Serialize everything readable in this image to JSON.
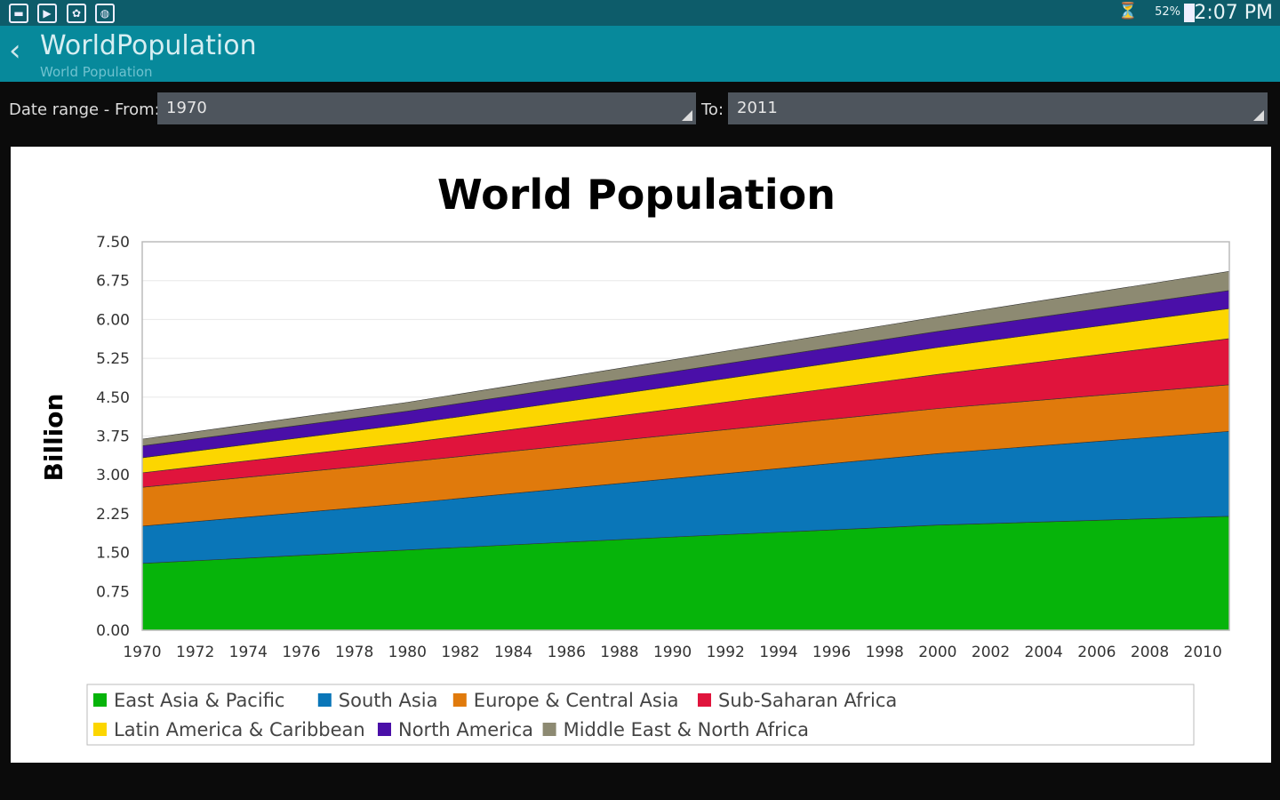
{
  "status_bar": {
    "battery": "52%",
    "time": "2:07 PM",
    "icons": [
      "gallery-icon",
      "play-store-icon",
      "app-icon",
      "globe-icon",
      "wifi-icon",
      "battery-icon"
    ]
  },
  "app_bar": {
    "title": "WorldPopulation",
    "subtitle": "World Population"
  },
  "filter": {
    "from_label": "Date range - From:",
    "from_value": "1970",
    "to_label": "To:",
    "to_value": "2011"
  },
  "colors": {
    "status": "#0d5c6a",
    "appbar": "#07899b"
  },
  "chart_data": {
    "type": "area",
    "stacked": true,
    "title": "World Population",
    "xlabel": "",
    "ylabel": "Billion",
    "ylim": [
      0,
      7.5
    ],
    "yticks": [
      "0.00",
      "0.75",
      "1.50",
      "2.25",
      "3.00",
      "3.75",
      "4.50",
      "5.25",
      "6.00",
      "6.75",
      "7.50"
    ],
    "xlim": [
      1970,
      2011
    ],
    "xticks": [
      "1970",
      "1972",
      "1974",
      "1976",
      "1978",
      "1980",
      "1982",
      "1984",
      "1986",
      "1988",
      "1990",
      "1992",
      "1994",
      "1996",
      "1998",
      "2000",
      "2002",
      "2004",
      "2006",
      "2008",
      "2010"
    ],
    "grid": true,
    "legend_position": "bottom",
    "x": [
      1970,
      1980,
      1990,
      2000,
      2011
    ],
    "series": [
      {
        "name": "East Asia & Pacific",
        "color": "#06b40a",
        "values": [
          1.29,
          1.55,
          1.8,
          2.03,
          2.2
        ]
      },
      {
        "name": "South Asia",
        "color": "#0a76b8",
        "values": [
          0.72,
          0.9,
          1.13,
          1.38,
          1.64
        ]
      },
      {
        "name": "Europe & Central Asia",
        "color": "#e07a0c",
        "values": [
          0.75,
          0.8,
          0.84,
          0.87,
          0.9
        ]
      },
      {
        "name": "Sub-Saharan Africa",
        "color": "#e0143c",
        "values": [
          0.28,
          0.37,
          0.5,
          0.66,
          0.89
        ]
      },
      {
        "name": "Latin America & Caribbean",
        "color": "#fcd600",
        "values": [
          0.29,
          0.36,
          0.44,
          0.52,
          0.58
        ]
      },
      {
        "name": "North America",
        "color": "#4a0fa8",
        "values": [
          0.23,
          0.25,
          0.28,
          0.31,
          0.35
        ]
      },
      {
        "name": "Middle East & North Africa",
        "color": "#8d8a72",
        "values": [
          0.13,
          0.17,
          0.23,
          0.28,
          0.37
        ]
      }
    ]
  }
}
